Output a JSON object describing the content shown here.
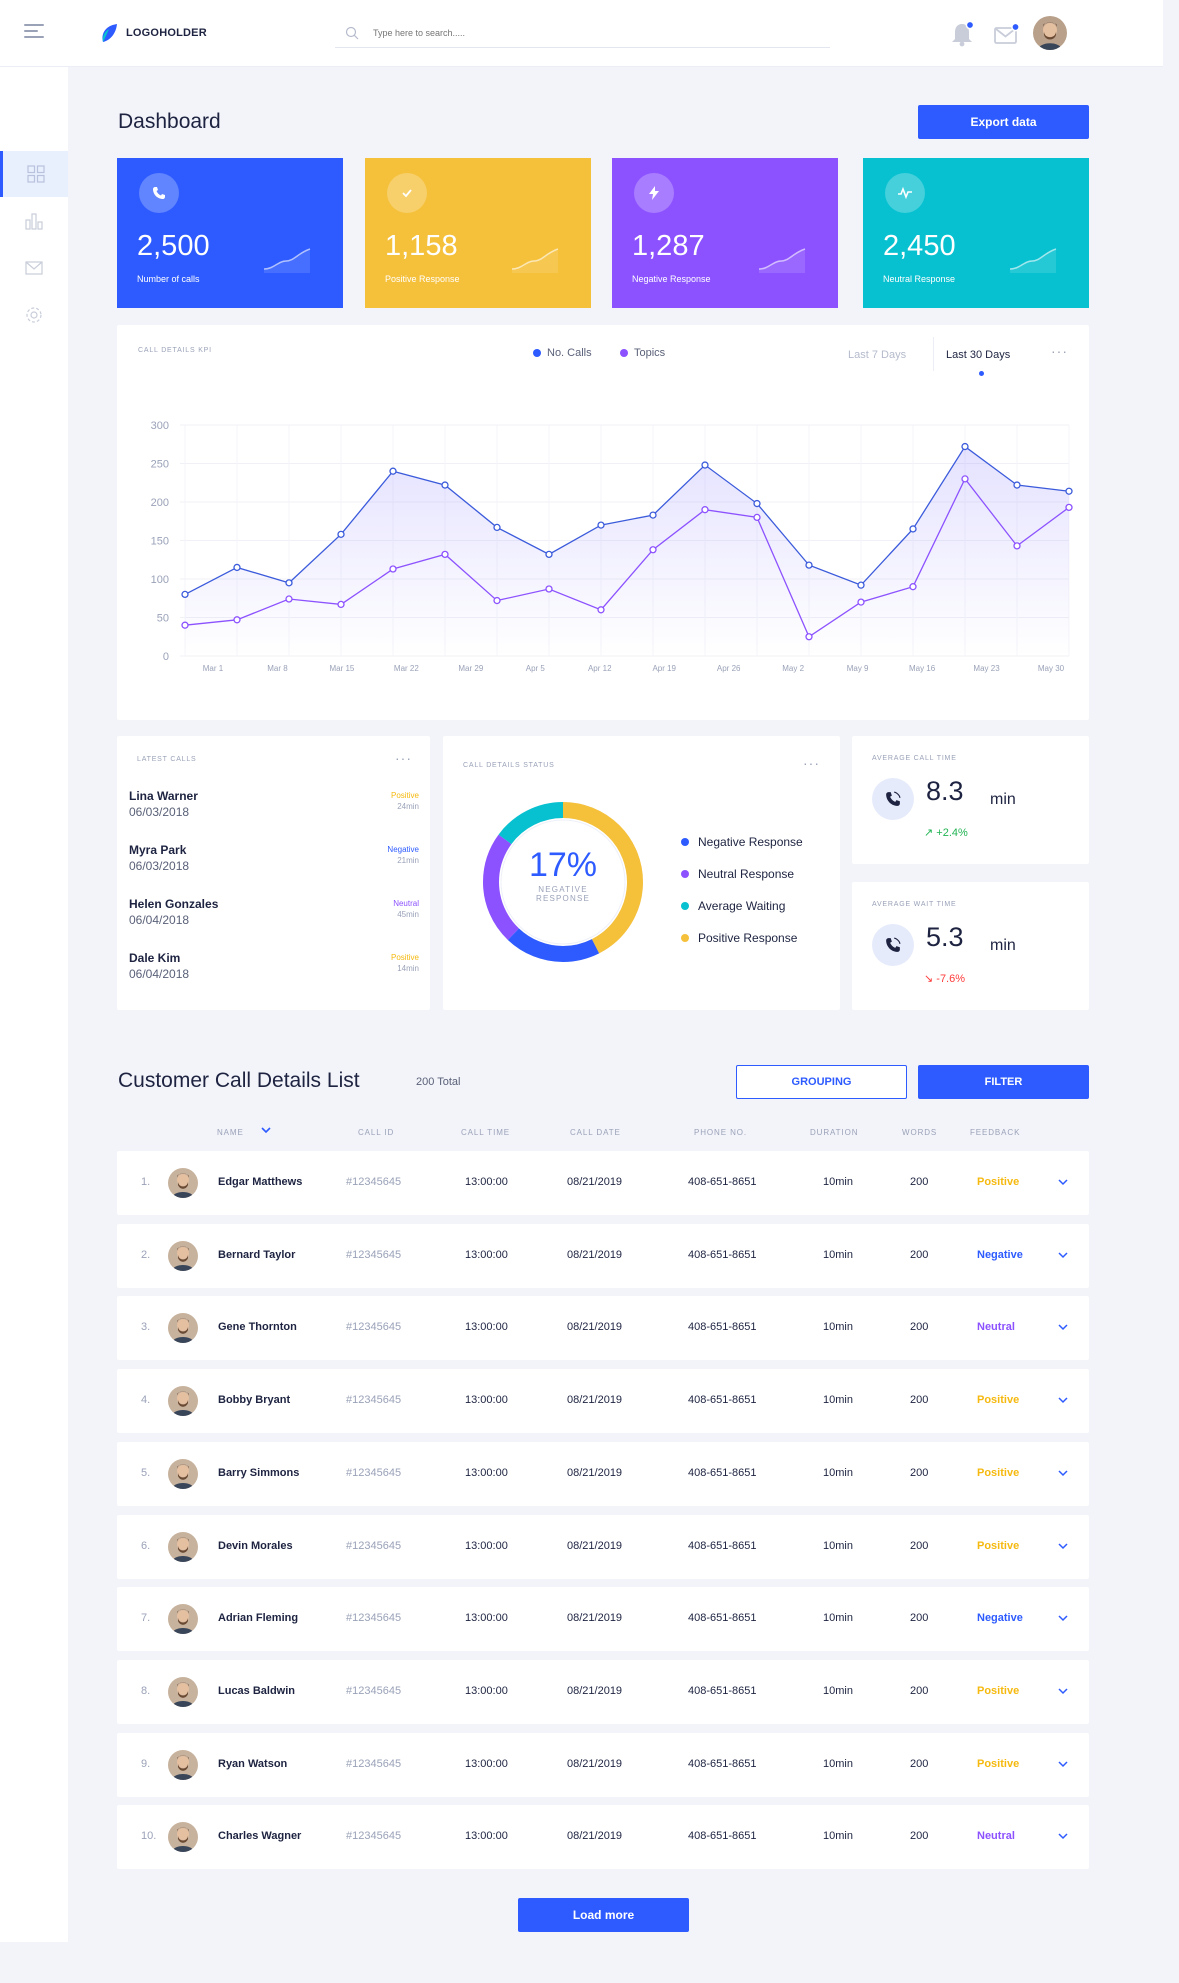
{
  "colors": {
    "accent": "#2d5bff",
    "yellow": "#f5c03a",
    "purple": "#8c52ff",
    "teal": "#07c1d0",
    "positive": "#f5b90f",
    "negative": "#2d5bff",
    "neutral": "#8c52ff",
    "up": "#20b352",
    "down": "#ff3b3b"
  },
  "header": {
    "logo_text": "LOGOHOLDER",
    "search_placeholder": "Type here to search....."
  },
  "sidebar": {
    "items": [
      {
        "icon": "dashboard-grid-icon"
      },
      {
        "icon": "bar-chart-icon"
      },
      {
        "icon": "mail-icon"
      },
      {
        "icon": "gear-icon"
      }
    ]
  },
  "page_title": "Dashboard",
  "export_label": "Export data",
  "stats": [
    {
      "value": "2,500",
      "label": "Number of calls",
      "icon": "phone-icon",
      "color": "#2d5bff"
    },
    {
      "value": "1,158",
      "label": "Positive Response",
      "icon": "check-icon",
      "color": "#f5c03a"
    },
    {
      "value": "1,287",
      "label": "Negative Response",
      "icon": "bolt-icon",
      "color": "#8c52ff"
    },
    {
      "value": "2,450",
      "label": "Neutral Response",
      "icon": "pulse-icon",
      "color": "#07c1d0"
    }
  ],
  "kpi": {
    "title": "CALL DETAILS KPI",
    "tab_7": "Last 7 Days",
    "tab_30": "Last 30 Days",
    "more": "···"
  },
  "chart_data": {
    "type": "line",
    "title": "CALL DETAILS KPI",
    "xlabel": "",
    "ylabel": "",
    "ylim": [
      0,
      300
    ],
    "yticks": [
      "0",
      "50",
      "100",
      "150",
      "200",
      "250",
      "300"
    ],
    "x_tick_labels": [
      "Mar 1",
      "Mar 8",
      "Mar 15",
      "Mar 22",
      "Mar 29",
      "Apr 5",
      "Apr 12",
      "Apr 19",
      "Apr 26",
      "May 2",
      "May 9",
      "May 16",
      "May 23",
      "May 30"
    ],
    "legend_position": "top-center",
    "grid": true,
    "series": [
      {
        "name": "No. Calls",
        "color": "#3b5bdb",
        "values": [
          80,
          115,
          95,
          158,
          240,
          222,
          167,
          132,
          170,
          183,
          248,
          198,
          118,
          92,
          165,
          272,
          222,
          214
        ]
      },
      {
        "name": "Topics",
        "color": "#8c52ff",
        "values": [
          40,
          47,
          74,
          67,
          113,
          132,
          72,
          87,
          60,
          138,
          190,
          180,
          25,
          70,
          90,
          230,
          143,
          193
        ]
      }
    ]
  },
  "latest_calls": {
    "title": "LATEST CALLS",
    "more": "···",
    "rows": [
      {
        "name": "Lina Warner",
        "date": "06/03/2018",
        "status": "Positive",
        "duration": "24min"
      },
      {
        "name": "Myra Park",
        "date": "06/03/2018",
        "status": "Negative",
        "duration": "21min"
      },
      {
        "name": "Helen Gonzales",
        "date": "06/04/2018",
        "status": "Neutral",
        "duration": "45min"
      },
      {
        "name": "Dale Kim",
        "date": "06/04/2018",
        "status": "Positive",
        "duration": "14min"
      }
    ]
  },
  "status": {
    "title": "CALL DETAILS STATUS",
    "more": "···",
    "percent": "17%",
    "percent_label_1": "NEGATIVE",
    "percent_label_2": "RESPONSE",
    "legend": [
      {
        "label": "Negative Response",
        "color": "#2d5bff",
        "share": 17
      },
      {
        "label": "Neutral Response",
        "color": "#8c52ff",
        "share": 20
      },
      {
        "label": "Average Waiting",
        "color": "#07c1d0",
        "share": 13
      },
      {
        "label": "Positive Response",
        "color": "#f5c03a",
        "share": 37
      }
    ]
  },
  "avg_call": {
    "title": "AVERAGE CALL TIME",
    "value": "8.3",
    "unit": "min",
    "delta": "+2.4%"
  },
  "avg_wait": {
    "title": "AVERAGE WAIT TIME",
    "value": "5.3",
    "unit": "min",
    "delta": "-7.6%"
  },
  "list": {
    "title": "Customer Call Details List",
    "total": "200 Total",
    "grouping_label": "GROUPING",
    "filter_label": "FILTER",
    "columns": {
      "name": "NAME",
      "call_id": "CALL ID",
      "call_time": "CALL TIME",
      "call_date": "CALL DATE",
      "phone": "PHONE NO.",
      "duration": "DURATION",
      "words": "WORDS",
      "feedback": "FEEDBACK"
    },
    "rows": [
      {
        "idx": "1.",
        "name": "Edgar Matthews",
        "call_id": "#12345645",
        "time": "13:00:00",
        "date": "08/21/2019",
        "phone": "408-651-8651",
        "duration": "10min",
        "words": "200",
        "feedback": "Positive"
      },
      {
        "idx": "2.",
        "name": "Bernard Taylor",
        "call_id": "#12345645",
        "time": "13:00:00",
        "date": "08/21/2019",
        "phone": "408-651-8651",
        "duration": "10min",
        "words": "200",
        "feedback": "Negative"
      },
      {
        "idx": "3.",
        "name": "Gene Thornton",
        "call_id": "#12345645",
        "time": "13:00:00",
        "date": "08/21/2019",
        "phone": "408-651-8651",
        "duration": "10min",
        "words": "200",
        "feedback": "Neutral"
      },
      {
        "idx": "4.",
        "name": "Bobby Bryant",
        "call_id": "#12345645",
        "time": "13:00:00",
        "date": "08/21/2019",
        "phone": "408-651-8651",
        "duration": "10min",
        "words": "200",
        "feedback": "Positive"
      },
      {
        "idx": "5.",
        "name": "Barry Simmons",
        "call_id": "#12345645",
        "time": "13:00:00",
        "date": "08/21/2019",
        "phone": "408-651-8651",
        "duration": "10min",
        "words": "200",
        "feedback": "Positive"
      },
      {
        "idx": "6.",
        "name": "Devin Morales",
        "call_id": "#12345645",
        "time": "13:00:00",
        "date": "08/21/2019",
        "phone": "408-651-8651",
        "duration": "10min",
        "words": "200",
        "feedback": "Positive"
      },
      {
        "idx": "7.",
        "name": "Adrian Fleming",
        "call_id": "#12345645",
        "time": "13:00:00",
        "date": "08/21/2019",
        "phone": "408-651-8651",
        "duration": "10min",
        "words": "200",
        "feedback": "Negative"
      },
      {
        "idx": "8.",
        "name": "Lucas Baldwin",
        "call_id": "#12345645",
        "time": "13:00:00",
        "date": "08/21/2019",
        "phone": "408-651-8651",
        "duration": "10min",
        "words": "200",
        "feedback": "Positive"
      },
      {
        "idx": "9.",
        "name": "Ryan Watson",
        "call_id": "#12345645",
        "time": "13:00:00",
        "date": "08/21/2019",
        "phone": "408-651-8651",
        "duration": "10min",
        "words": "200",
        "feedback": "Positive"
      },
      {
        "idx": "10.",
        "name": "Charles Wagner",
        "call_id": "#12345645",
        "time": "13:00:00",
        "date": "08/21/2019",
        "phone": "408-651-8651",
        "duration": "10min",
        "words": "200",
        "feedback": "Neutral"
      }
    ]
  },
  "load_more_label": "Load more"
}
